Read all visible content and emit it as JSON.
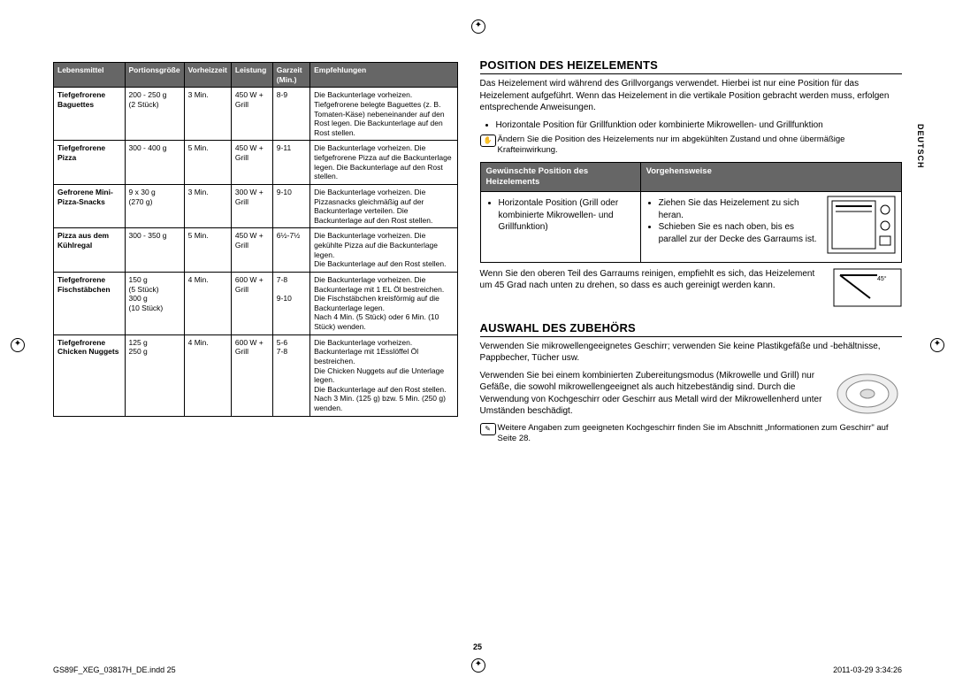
{
  "left_table": {
    "headers": [
      "Lebensmittel",
      "Portionsgröße",
      "Vorheizzeit",
      "Leistung",
      "Garzeit (Min.)",
      "Empfehlungen"
    ],
    "rows": [
      {
        "food": "Tiefgefrorene Baguettes",
        "portion": "200 - 250 g\n(2 Stück)",
        "preheat": "3 Min.",
        "power": "450 W + Grill",
        "time": "8-9",
        "note": "Die Backunterlage vorheizen. Tiefgefrorene belegte Baguettes (z. B. Tomaten-Käse) nebeneinander auf den Rost legen. Die Backunterlage auf den Rost stellen."
      },
      {
        "food": "Tiefgefrorene Pizza",
        "portion": "300 - 400 g",
        "preheat": "5 Min.",
        "power": "450 W + Grill",
        "time": "9-11",
        "note": "Die Backunterlage vorheizen. Die tiefgefrorene Pizza auf die Backunterlage legen. Die Backunterlage auf den Rost stellen."
      },
      {
        "food": "Gefrorene Mini-Pizza-Snacks",
        "portion": "9 x 30 g\n(270 g)",
        "preheat": "3 Min.",
        "power": "300 W + Grill",
        "time": "9-10",
        "note": "Die Backunterlage vorheizen. Die Pizzasnacks gleichmäßig auf der Backunterlage verteilen. Die Backunterlage auf den Rost stellen."
      },
      {
        "food": "Pizza aus dem Kühlregal",
        "portion": "300 - 350 g",
        "preheat": "5 Min.",
        "power": "450 W + Grill",
        "time": "6½-7½",
        "note": "Die Backunterlage vorheizen. Die gekühlte Pizza auf die Backunterlage legen.\nDie Backunterlage auf den Rost stellen."
      },
      {
        "food": "Tiefgefrorene Fischstäbchen",
        "portion": "150 g\n(5 Stück)\n300 g\n(10 Stück)",
        "preheat": "4 Min.",
        "power": "600 W + Grill",
        "time": "7-8\n\n9-10",
        "note": "Die Backunterlage vorheizen. Die Backunterlage mit 1 EL Öl bestreichen. Die Fischstäbchen kreisförmig auf die Backunterlage legen.\nNach 4 Min. (5 Stück) oder 6 Min. (10 Stück) wenden."
      },
      {
        "food": "Tiefgefrorene Chicken Nuggets",
        "portion": "125 g\n250 g",
        "preheat": "4 Min.",
        "power": "600 W + Grill",
        "time": "5-6\n7-8",
        "note": "Die Backunterlage vorheizen. Backunterlage mit 1Esslöffel Öl bestreichen.\nDie Chicken Nuggets auf die Unterlage legen.\nDie Backunterlage auf den Rost stellen. Nach 3 Min. (125 g) bzw. 5 Min. (250 g) wenden."
      }
    ]
  },
  "right": {
    "heading1": "POSITION DES HEIZELEMENTS",
    "p1": "Das Heizelement wird während des Grillvorgangs verwendet. Hierbei ist nur eine Position für das Heizelement aufgeführt. Wenn das Heizelement in die vertikale Position gebracht werden muss, erfolgen entsprechende Anweisungen.",
    "bullet1": "Horizontale Position für Grillfunktion oder kombinierte Mikrowellen- und Grillfunktion",
    "note1": "Ändern Sie die Position des Heizelements nur im abgekühlten Zustand und ohne übermäßige Krafteinwirkung.",
    "pos_table": {
      "headers": [
        "Gewünschte Position des Heizelements",
        "Vorgehensweise"
      ],
      "row": {
        "col1": "Horizontale Position (Grill oder kombinierte Mikrowellen- und Grillfunktion)",
        "col2a": "Ziehen Sie das Heizelement zu sich heran.",
        "col2b": "Schieben Sie es nach oben, bis es parallel zur der Decke des Garraums ist."
      }
    },
    "p2": "Wenn Sie den oberen Teil des Garraums reinigen, empfiehlt es sich, das Heizelement um 45 Grad nach unten zu drehen, so dass es auch gereinigt werden kann.",
    "fig2_label": "45°",
    "heading2": "AUSWAHL DES ZUBEHÖRS",
    "p3": "Verwenden Sie mikrowellengeeignetes Geschirr; verwenden Sie keine Plastikgefäße und -behältnisse, Pappbecher, Tücher usw.",
    "p4": "Verwenden Sie bei einem kombinierten Zubereitungsmodus (Mikrowelle und Grill) nur Gefäße, die sowohl mikrowellengeeignet als auch hitzebeständig sind. Durch die Verwendung von Kochgeschirr oder Geschirr aus Metall wird der Mikrowellenherd unter Umständen beschädigt.",
    "note2": "Weitere Angaben zum geeigneten Kochgeschirr finden Sie im Abschnitt „Informationen zum Geschirr\" auf Seite 28."
  },
  "footer": {
    "left": "GS89F_XEG_03817H_DE.indd   25",
    "right": "2011-03-29   3:34:26"
  },
  "page_number": "25",
  "side_tab": "DEUTSCH"
}
